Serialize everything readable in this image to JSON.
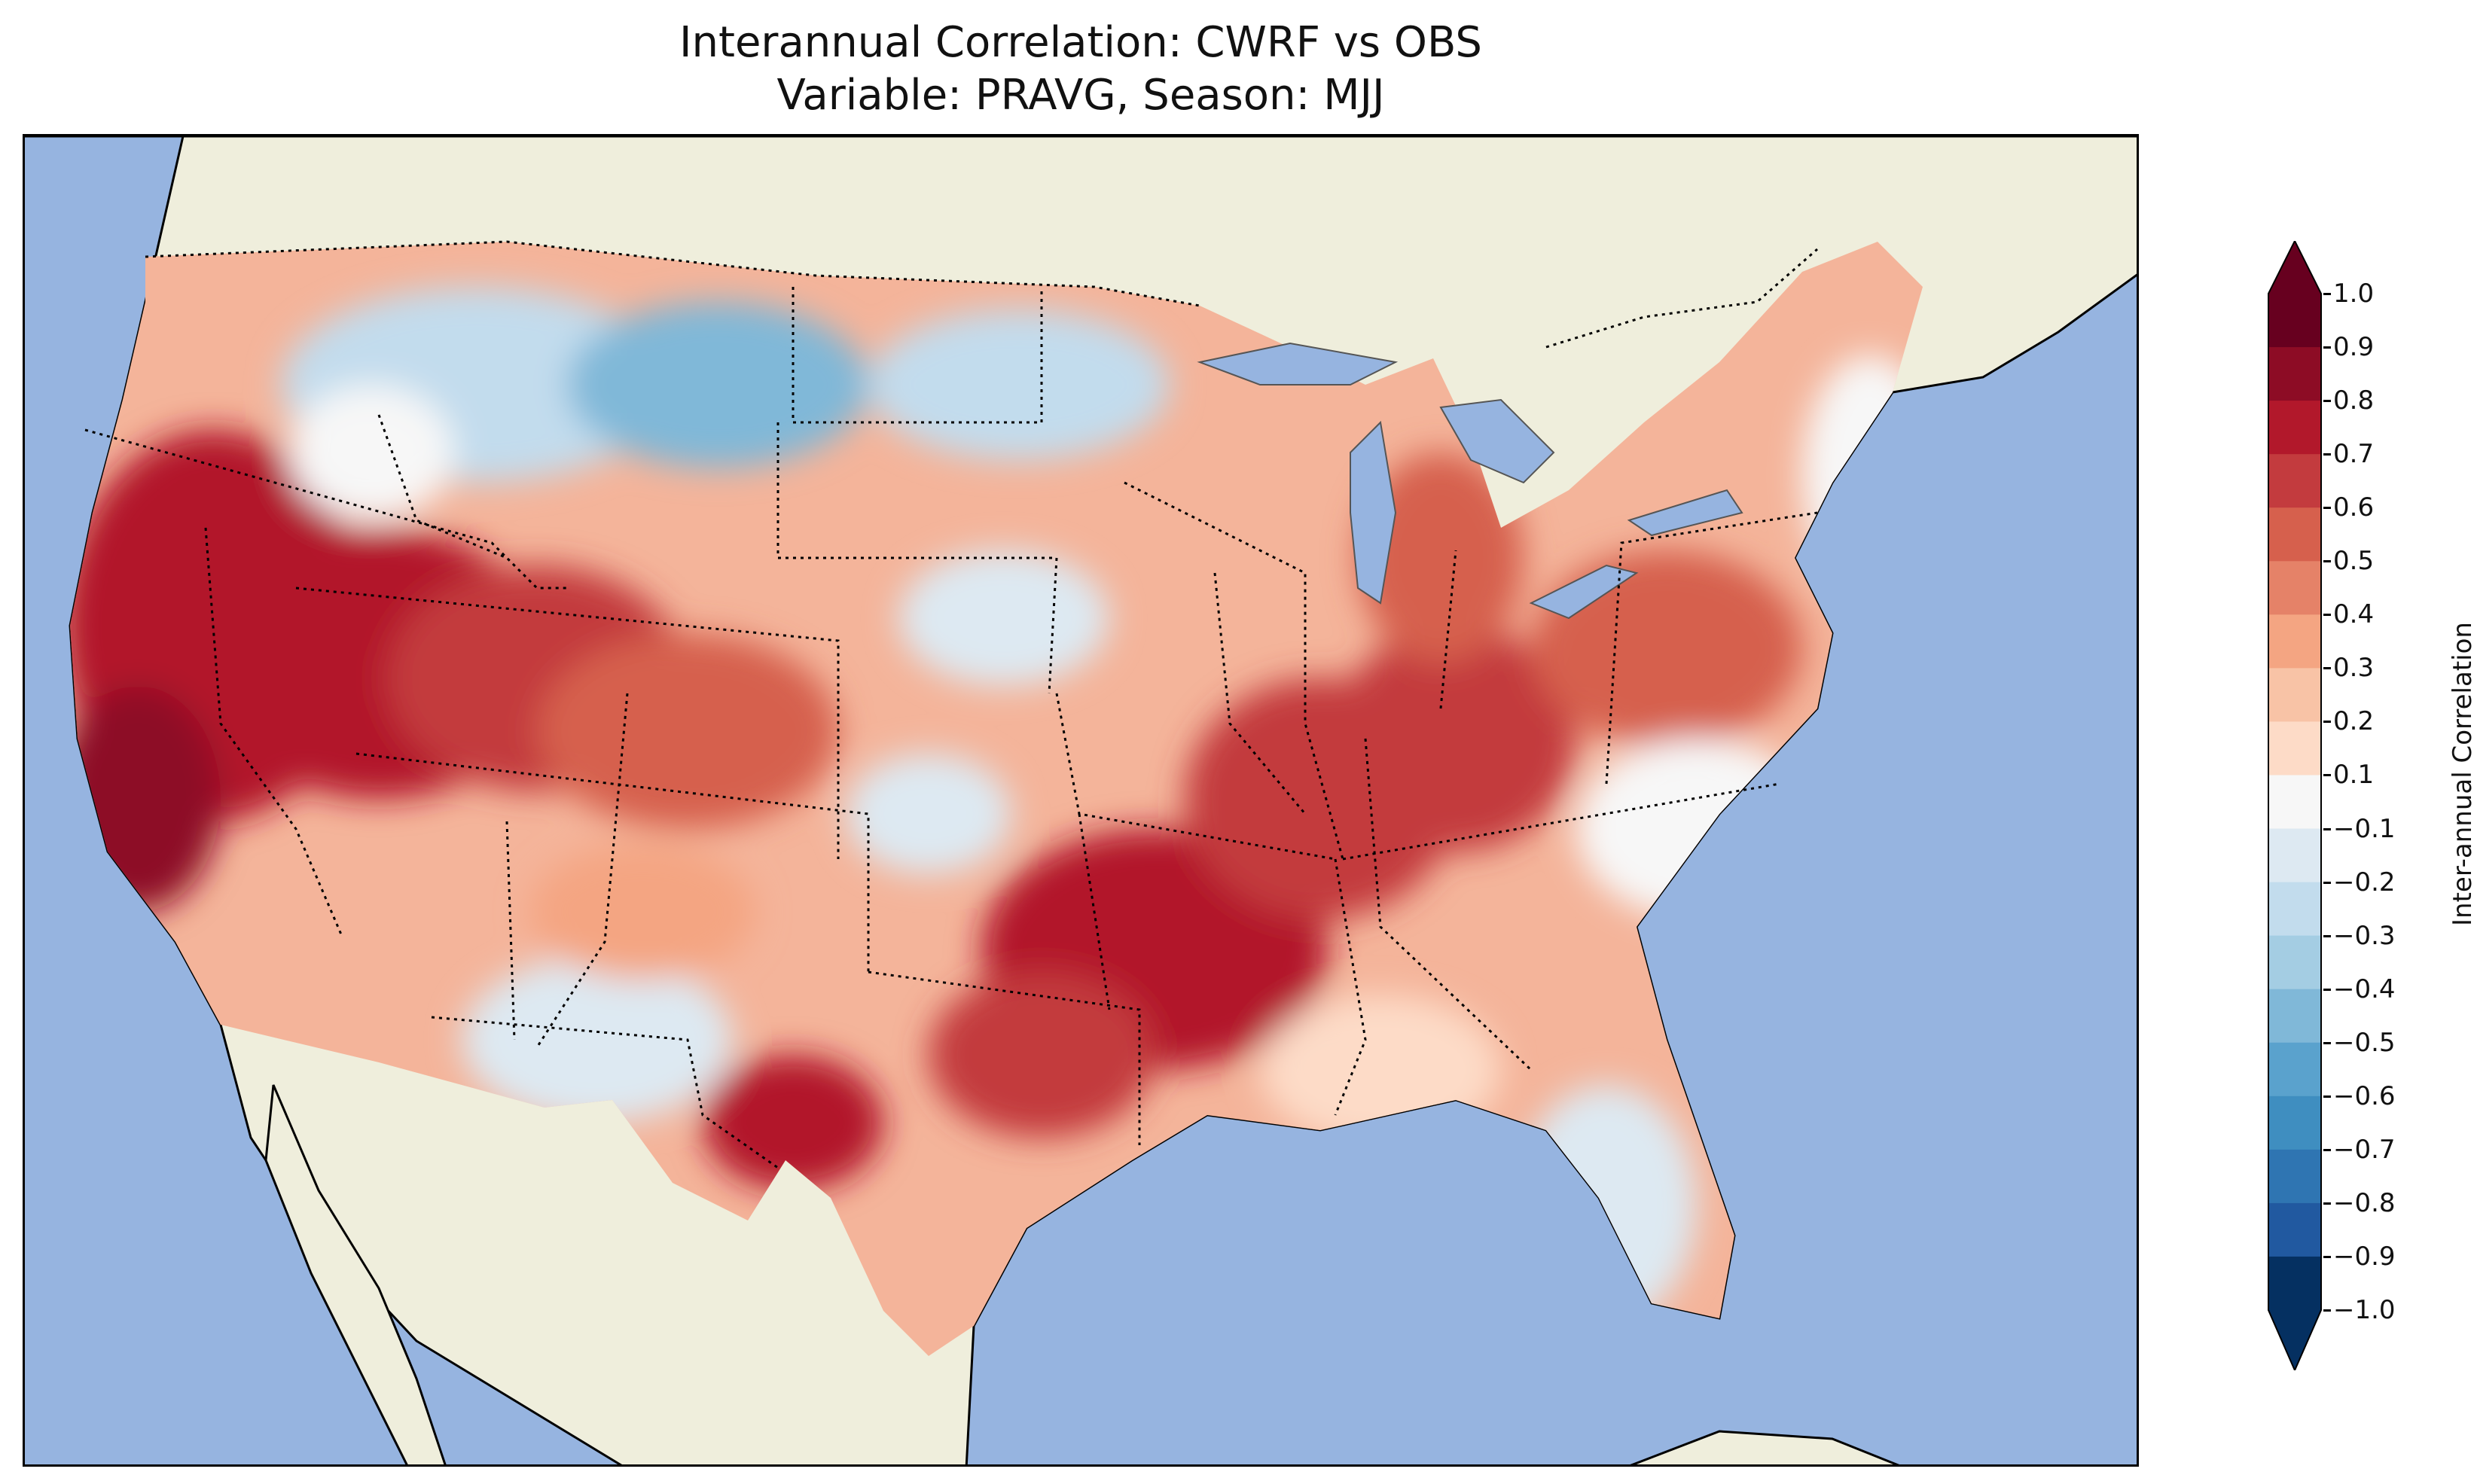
{
  "title": {
    "line1": "Interannual Correlation: CWRF vs OBS",
    "line2": "Variable: PRAVG, Season: MJJ"
  },
  "map": {
    "ocean_color": "#96b4e0",
    "land_color": "#efeedc",
    "border_color": "#000000"
  },
  "colorbar": {
    "label": "Inter-annual Correlation",
    "ticks": [
      "1.0",
      "0.9",
      "0.8",
      "0.7",
      "0.6",
      "0.5",
      "0.4",
      "0.3",
      "0.2",
      "0.1",
      "−0.1",
      "−0.2",
      "−0.3",
      "−0.4",
      "−0.5",
      "−0.6",
      "−0.7",
      "−0.8",
      "−0.9",
      "−1.0"
    ],
    "colors": [
      "#67001f",
      "#8d0c25",
      "#b2182b",
      "#c33b3e",
      "#d6604d",
      "#e58268",
      "#f4a582",
      "#f8c3a6",
      "#fddbc7",
      "#f7f7f7",
      "#dde9f2",
      "#c2dced",
      "#a4cde3",
      "#80b8d8",
      "#5aa2cd",
      "#3f8ec0",
      "#2f75b2",
      "#2159a0",
      "#053061"
    ],
    "extend_low_color": "#053061",
    "extend_high_color": "#67001f"
  }
}
